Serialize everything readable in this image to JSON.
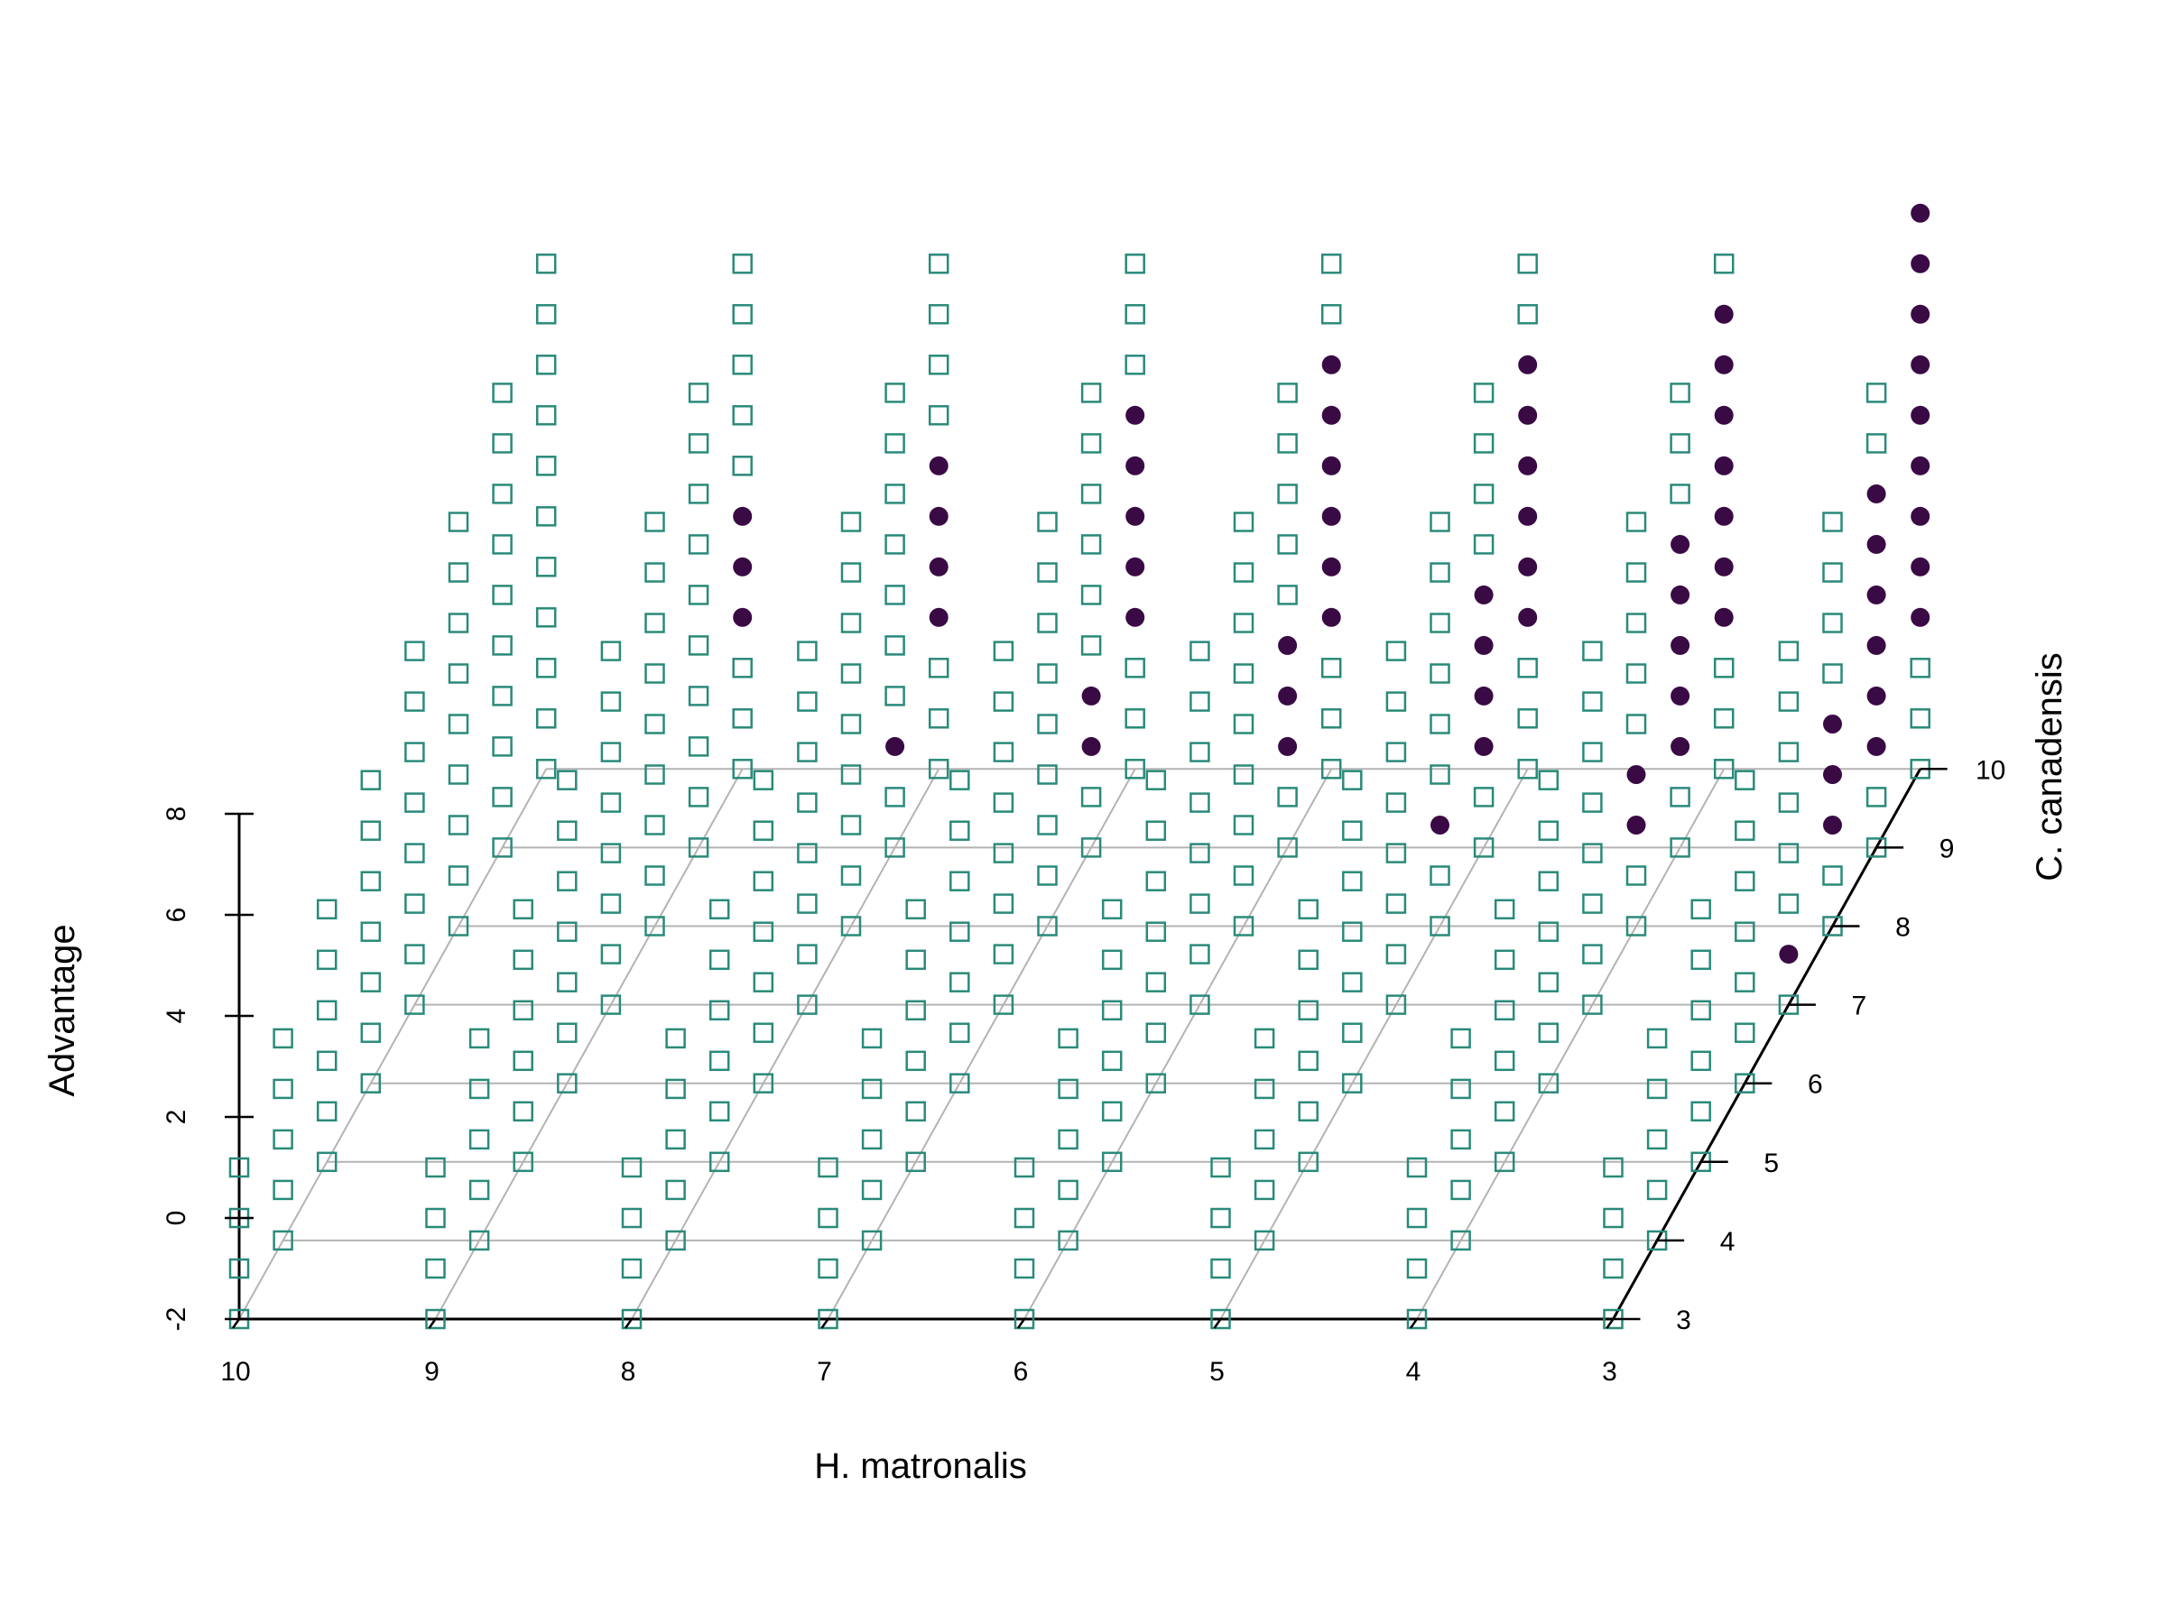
{
  "chart_data": {
    "type": "scatter3d",
    "title": "",
    "axes": {
      "x": {
        "label": "H. matronalis",
        "range": [
          10,
          3
        ],
        "ticks": [
          "10",
          "9",
          "8",
          "7",
          "6",
          "5",
          "4",
          "3"
        ]
      },
      "y": {
        "label": "C. canadensis",
        "range": [
          3,
          10
        ],
        "ticks": [
          "3",
          "4",
          "5",
          "6",
          "7",
          "8",
          "9",
          "10"
        ]
      },
      "z": {
        "label": "Advantage",
        "range": [
          -2,
          8
        ],
        "ticks": [
          "-2",
          "0",
          "2",
          "4",
          "6",
          "8"
        ]
      }
    },
    "grid": true,
    "z_step": 1,
    "series": [
      {
        "marker": "open-square",
        "color": "#2a8a7a",
        "rule": "all grid points with integer H. matronalis 3-10, C. canadensis 3-10 and z from -2 up to (C. canadensis - 2), not listed in the filled series"
      },
      {
        "marker": "filled-circle",
        "color": "#3a0a45",
        "columns": [
          {
            "x": 9,
            "y": 10,
            "z": [
              1,
              2,
              3
            ]
          },
          {
            "x": 8,
            "y": 9,
            "z": [
              0
            ]
          },
          {
            "x": 8,
            "y": 10,
            "z": [
              1,
              2,
              3,
              4
            ]
          },
          {
            "x": 7,
            "y": 9,
            "z": [
              0,
              1
            ]
          },
          {
            "x": 7,
            "y": 10,
            "z": [
              1,
              2,
              3,
              4,
              5
            ]
          },
          {
            "x": 6,
            "y": 9,
            "z": [
              0,
              1,
              2
            ]
          },
          {
            "x": 6,
            "y": 10,
            "z": [
              1,
              2,
              3,
              4,
              5,
              6
            ]
          },
          {
            "x": 5,
            "y": 8,
            "z": [
              0
            ]
          },
          {
            "x": 5,
            "y": 9,
            "z": [
              0,
              1,
              2,
              3
            ]
          },
          {
            "x": 5,
            "y": 10,
            "z": [
              1,
              2,
              3,
              4,
              5,
              6
            ]
          },
          {
            "x": 4,
            "y": 8,
            "z": [
              0,
              1
            ]
          },
          {
            "x": 4,
            "y": 9,
            "z": [
              0,
              1,
              2,
              3,
              4
            ]
          },
          {
            "x": 4,
            "y": 10,
            "z": [
              1,
              2,
              3,
              4,
              5,
              6,
              7
            ]
          },
          {
            "x": 3,
            "y": 7,
            "z": [
              -1
            ]
          },
          {
            "x": 3,
            "y": 8,
            "z": [
              0,
              1,
              2
            ]
          },
          {
            "x": 3,
            "y": 9,
            "z": [
              0,
              1,
              2,
              3,
              4,
              5
            ]
          },
          {
            "x": 3,
            "y": 10,
            "z": [
              1,
              2,
              3,
              4,
              5,
              6,
              7,
              8,
              9
            ]
          }
        ]
      }
    ]
  }
}
